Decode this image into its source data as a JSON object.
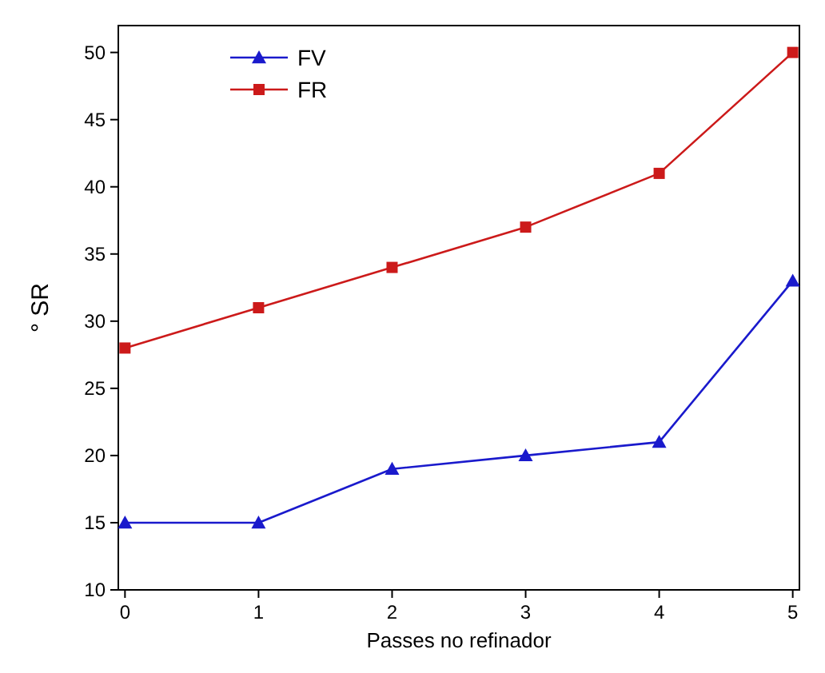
{
  "chart_data": {
    "type": "line",
    "xlabel": "Passes no refinador",
    "ylabel": "° SR",
    "x": [
      0,
      1,
      2,
      3,
      4,
      5
    ],
    "series": [
      {
        "name": "FV",
        "color": "#1a1acc",
        "values": [
          15,
          15,
          19,
          20,
          21,
          33
        ],
        "marker": "triangle"
      },
      {
        "name": "FR",
        "color": "#cc1a1a",
        "values": [
          28,
          31,
          34,
          37,
          41,
          50
        ],
        "marker": "square"
      }
    ],
    "xlim": [
      -0.05,
      5.05
    ],
    "xticks": [
      0,
      1,
      2,
      3,
      4,
      5
    ],
    "ylim": [
      10,
      52
    ],
    "yticks": [
      10,
      15,
      20,
      25,
      30,
      35,
      40,
      45,
      50
    ],
    "legend": "top left",
    "grid": false,
    "line_style": "solid"
  }
}
